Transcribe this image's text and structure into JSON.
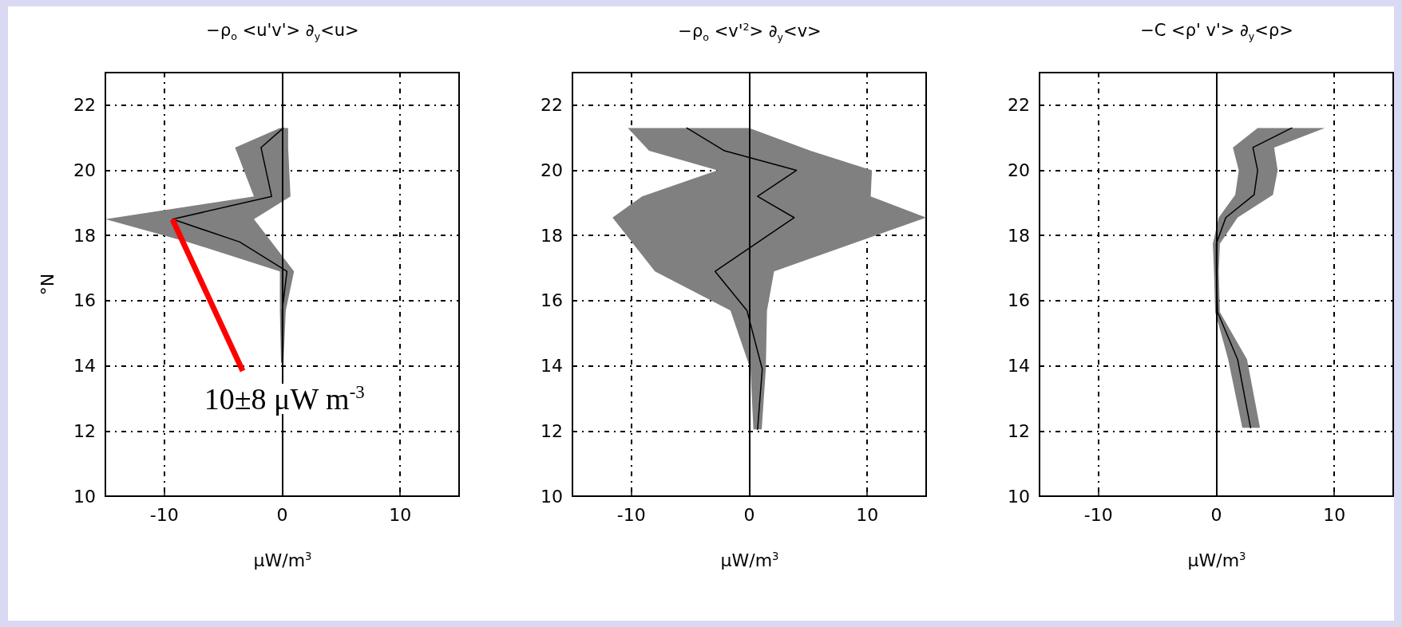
{
  "chart_data": [
    {
      "type": "line",
      "orientation": "horizontal",
      "title": "−ρ$_{o}$ <u'v'> ∂$_{y}$<u>",
      "xlabel": "μW/m$^{3}$",
      "ylabel": "°N",
      "xlim": [
        -15,
        15
      ],
      "xticks": [
        -10,
        0,
        10
      ],
      "ylim": [
        10,
        23
      ],
      "yticks": [
        10,
        12,
        14,
        16,
        18,
        20,
        22
      ],
      "grid": true,
      "ref_lines": [
        {
          "axis": "x",
          "value": 0,
          "color": "#000000"
        }
      ],
      "annotations": [
        {
          "text": "10±8 μW m$^{-3}$",
          "x": -9.3,
          "y": 18.5
        }
      ],
      "series": [
        {
          "color": "#000000",
          "x": [
            21.3,
            20.7,
            19.2,
            18.5,
            17.8,
            16.9,
            15.7,
            14.1
          ],
          "values": [
            0.1,
            -1.8,
            -0.9,
            -9.3,
            -3.6,
            0.4,
            0,
            0
          ],
          "lower": [
            -0.2,
            -4.0,
            -2.4,
            -15,
            -8.0,
            -0.2,
            -0.2,
            -0.1
          ],
          "upper": [
            0.5,
            0.5,
            0.7,
            -2.4,
            -0.9,
            1.0,
            0.3,
            0.1
          ]
        }
      ]
    },
    {
      "type": "line",
      "orientation": "horizontal",
      "title": "−ρ$_{o}$ <v'$^{2}$> ∂$_{y}$<v>",
      "xlabel": "μW/m$^{3}$",
      "xlim": [
        -15,
        15
      ],
      "xticks": [
        -10,
        0,
        10
      ],
      "ylim": [
        10,
        23
      ],
      "yticks": [
        10,
        12,
        14,
        16,
        18,
        20,
        22
      ],
      "grid": true,
      "ref_lines": [
        {
          "axis": "x",
          "value": 0,
          "color": "#000000"
        }
      ],
      "series": [
        {
          "color": "#000000",
          "x": [
            21.3,
            20.6,
            20.0,
            19.2,
            18.55,
            16.9,
            15.7,
            13.9,
            12.05
          ],
          "values": [
            -5.3,
            -2.1,
            4.0,
            0.7,
            3.8,
            -2.9,
            -0.2,
            1.1,
            0.7
          ],
          "lower": [
            -10.3,
            -8.5,
            -2.7,
            -9.1,
            -11.6,
            -8.0,
            -1.6,
            0.1,
            0.35
          ],
          "upper": [
            0,
            5.2,
            10.4,
            10.3,
            15,
            2.1,
            1.5,
            1.4,
            1.05
          ]
        }
      ]
    },
    {
      "type": "line",
      "orientation": "horizontal",
      "title": "−C <ρ' v'> ∂$_{y}$<ρ>",
      "xlabel": "μW/m$^{3}$",
      "xlim": [
        -15,
        15
      ],
      "xticks": [
        -10,
        0,
        10
      ],
      "ylim": [
        10,
        23
      ],
      "yticks": [
        10,
        12,
        14,
        16,
        18,
        20,
        22
      ],
      "grid": true,
      "ref_lines": [
        {
          "axis": "x",
          "value": 0,
          "color": "#000000"
        }
      ],
      "series": [
        {
          "color": "#000000",
          "x": [
            21.3,
            20.7,
            20.0,
            19.25,
            18.55,
            17.75,
            16.9,
            15.65,
            14.2,
            12.1
          ],
          "values": [
            6.4,
            3.1,
            3.5,
            3.2,
            0.8,
            0,
            0,
            0.1,
            1.8,
            2.9
          ],
          "lower": [
            3.5,
            1.4,
            1.9,
            1.6,
            0.2,
            -0.3,
            -0.2,
            -0.1,
            1.0,
            2.2
          ],
          "upper": [
            9.2,
            4.9,
            5.2,
            4.8,
            1.8,
            0.3,
            0.2,
            0.3,
            2.6,
            3.7
          ]
        }
      ]
    }
  ]
}
